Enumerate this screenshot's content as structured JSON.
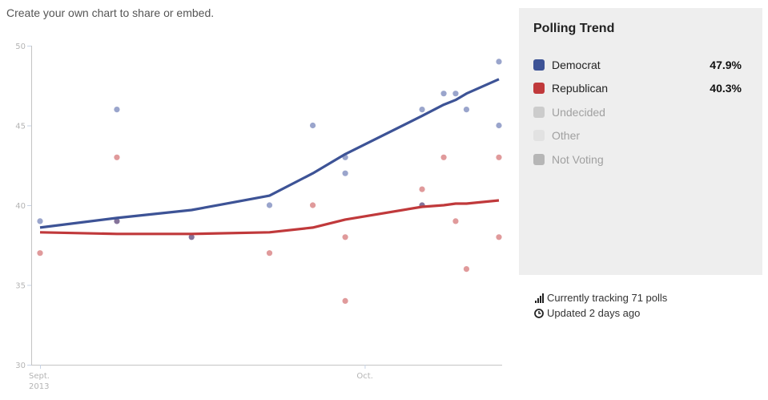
{
  "caption": "Create your own chart to share or embed.",
  "panel": {
    "title": "Polling Trend",
    "legend": [
      {
        "label": "Democrat",
        "value": "47.9%",
        "color": "#3d5396",
        "active": true
      },
      {
        "label": "Republican",
        "value": "40.3%",
        "color": "#c0393b",
        "active": true
      },
      {
        "label": "Undecided",
        "value": "",
        "color": "#cccccc",
        "active": false
      },
      {
        "label": "Other",
        "value": "",
        "color": "#e2e2e2",
        "active": false
      },
      {
        "label": "Not Voting",
        "value": "",
        "color": "#b6b6b6",
        "active": false
      }
    ]
  },
  "meta": {
    "tracking": "Currently tracking 71 polls",
    "tracking_icon": "signal-bars-icon",
    "updated": "Updated 2 days ago",
    "updated_icon": "clock-icon"
  },
  "chart_data": {
    "type": "scatter",
    "title": "",
    "xlabel": "",
    "ylabel": "",
    "x_unit": "days since Sept. 1, 2013",
    "xlim": [
      0,
      42.4
    ],
    "ylim": [
      30,
      50
    ],
    "y_ticks": [
      30,
      35,
      40,
      45,
      50
    ],
    "x_ticks": [
      {
        "x": 0,
        "label": [
          "Sept.",
          "2013"
        ]
      },
      {
        "x": 30,
        "label": [
          "Oct."
        ]
      }
    ],
    "grid": false,
    "colors": {
      "democrat_line": "#3d5396",
      "democrat_point": "#9aa5cc",
      "republican_line": "#c0393b",
      "republican_point": "#e09a9b",
      "overlap_point": "#84739a",
      "axis": "#c4c4c4",
      "tick": "#c7d3e6"
    },
    "series": [
      {
        "name": "Democrat",
        "points": [
          {
            "x": 0,
            "y": 39
          },
          {
            "x": 7.1,
            "y": 46
          },
          {
            "x": 7.1,
            "y": 39
          },
          {
            "x": 14.0,
            "y": 38
          },
          {
            "x": 21.2,
            "y": 40
          },
          {
            "x": 25.2,
            "y": 45
          },
          {
            "x": 28.2,
            "y": 43
          },
          {
            "x": 28.2,
            "y": 42
          },
          {
            "x": 35.3,
            "y": 46
          },
          {
            "x": 35.3,
            "y": 40
          },
          {
            "x": 37.3,
            "y": 47
          },
          {
            "x": 38.4,
            "y": 47
          },
          {
            "x": 39.4,
            "y": 46
          },
          {
            "x": 42.4,
            "y": 49
          },
          {
            "x": 42.4,
            "y": 45
          }
        ],
        "trend": [
          {
            "x": 0,
            "y": 38.6
          },
          {
            "x": 7.1,
            "y": 39.2
          },
          {
            "x": 14.0,
            "y": 39.7
          },
          {
            "x": 21.2,
            "y": 40.6
          },
          {
            "x": 25.2,
            "y": 42.0
          },
          {
            "x": 28.2,
            "y": 43.2
          },
          {
            "x": 35.3,
            "y": 45.6
          },
          {
            "x": 37.3,
            "y": 46.3
          },
          {
            "x": 38.4,
            "y": 46.6
          },
          {
            "x": 39.4,
            "y": 47.0
          },
          {
            "x": 42.4,
            "y": 47.9
          }
        ]
      },
      {
        "name": "Republican",
        "points": [
          {
            "x": 0,
            "y": 37
          },
          {
            "x": 7.1,
            "y": 43
          },
          {
            "x": 7.1,
            "y": 39
          },
          {
            "x": 14.0,
            "y": 38
          },
          {
            "x": 21.2,
            "y": 37
          },
          {
            "x": 25.2,
            "y": 40
          },
          {
            "x": 28.2,
            "y": 38
          },
          {
            "x": 28.2,
            "y": 34
          },
          {
            "x": 35.3,
            "y": 41
          },
          {
            "x": 35.3,
            "y": 40
          },
          {
            "x": 37.3,
            "y": 43
          },
          {
            "x": 38.4,
            "y": 39
          },
          {
            "x": 39.4,
            "y": 36
          },
          {
            "x": 42.4,
            "y": 43
          },
          {
            "x": 42.4,
            "y": 38
          }
        ],
        "trend": [
          {
            "x": 0,
            "y": 38.3
          },
          {
            "x": 7.1,
            "y": 38.2
          },
          {
            "x": 14.0,
            "y": 38.2
          },
          {
            "x": 21.2,
            "y": 38.3
          },
          {
            "x": 25.2,
            "y": 38.6
          },
          {
            "x": 28.2,
            "y": 39.1
          },
          {
            "x": 35.3,
            "y": 39.9
          },
          {
            "x": 37.3,
            "y": 40.0
          },
          {
            "x": 38.4,
            "y": 40.1
          },
          {
            "x": 39.4,
            "y": 40.1
          },
          {
            "x": 42.4,
            "y": 40.3
          }
        ]
      }
    ],
    "legend": "right-panel"
  }
}
